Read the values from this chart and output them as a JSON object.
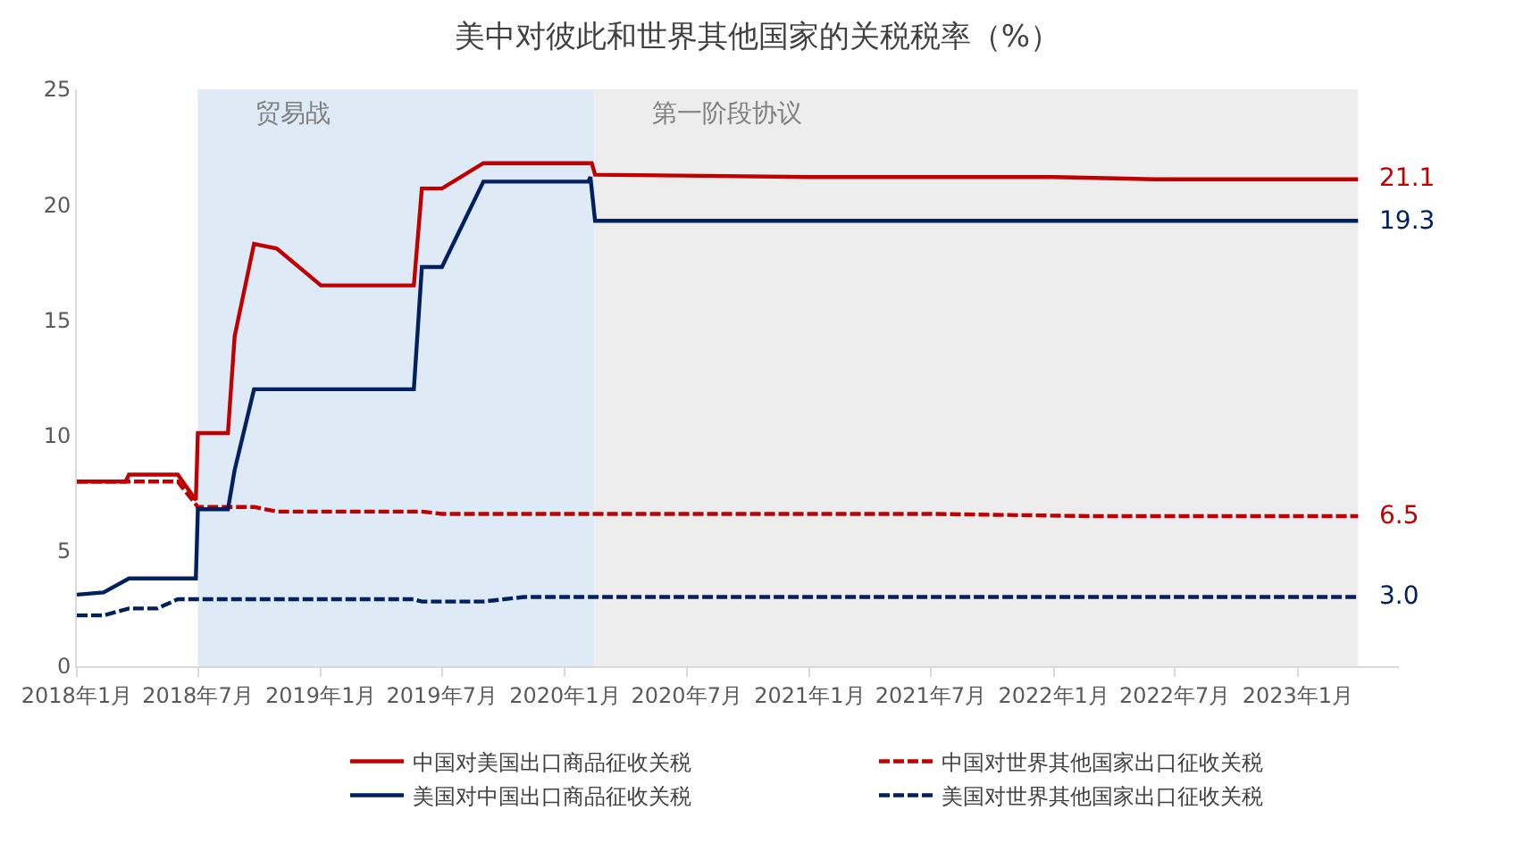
{
  "chart_data": {
    "type": "line",
    "title": "美中对彼此和世界其他国家的关税税率（%）",
    "xlim": [
      "2018-01",
      "2023-06"
    ],
    "xticks": [
      {
        "value": "2018-01",
        "label": "2018年1月"
      },
      {
        "value": "2018-07",
        "label": "2018年7月"
      },
      {
        "value": "2019-01",
        "label": "2019年1月"
      },
      {
        "value": "2019-07",
        "label": "2019年7月"
      },
      {
        "value": "2020-01",
        "label": "2020年1月"
      },
      {
        "value": "2020-07",
        "label": "2020年7月"
      },
      {
        "value": "2021-01",
        "label": "2021年1月"
      },
      {
        "value": "2021-07",
        "label": "2021年7月"
      },
      {
        "value": "2022-01",
        "label": "2022年1月"
      },
      {
        "value": "2022-07",
        "label": "2022年7月"
      },
      {
        "value": "2023-01",
        "label": "2023年1月"
      }
    ],
    "ylim": [
      0,
      25
    ],
    "yticks": [
      0,
      5,
      10,
      15,
      20,
      25
    ],
    "grid": false,
    "legend": "bottom",
    "marker": "none",
    "bands": [
      {
        "axis": "x",
        "from": "2018-07-01",
        "to": "2020-02-14",
        "label": "贸易战",
        "color": "#deebf7"
      },
      {
        "axis": "x",
        "from": "2020-02-14",
        "to": "2023-04-01",
        "label": "第一阶段协议",
        "color": "#ededed"
      }
    ],
    "series": [
      {
        "name": "中国对美国出口商品征收关税",
        "color": "#c00000",
        "line_style": "solid",
        "x": [
          "2018-01-01",
          "2018-03-15",
          "2018-03-20",
          "2018-06-01",
          "2018-06-28",
          "2018-07-01",
          "2018-08-15",
          "2018-08-25",
          "2018-09-23",
          "2018-10-27",
          "2019-01-01",
          "2019-05-20",
          "2019-06-01",
          "2019-07-01",
          "2019-09-01",
          "2020-02-10",
          "2020-02-15",
          "2021-01-01",
          "2022-01-01",
          "2022-06-01",
          "2022-09-01",
          "2023-01-01",
          "2023-04-01"
        ],
        "values": [
          8.0,
          8.0,
          8.3,
          8.3,
          7.2,
          10.1,
          10.1,
          14.3,
          18.3,
          18.1,
          16.5,
          16.5,
          20.7,
          20.7,
          21.8,
          21.8,
          21.3,
          21.2,
          21.2,
          21.1,
          21.1,
          21.1,
          21.1
        ]
      },
      {
        "name": "中国对世界其他国家出口征收关税",
        "color": "#c00000",
        "line_style": "dashed",
        "x": [
          "2018-01-01",
          "2018-06-01",
          "2018-07-01",
          "2018-09-23",
          "2018-10-27",
          "2019-06-01",
          "2019-07-01",
          "2021-07-01",
          "2022-03-01",
          "2023-04-01"
        ],
        "values": [
          8.0,
          8.0,
          6.9,
          6.9,
          6.7,
          6.7,
          6.6,
          6.6,
          6.5,
          6.5
        ]
      },
      {
        "name": "美国对中国出口商品征收关税",
        "color": "#002060",
        "line_style": "solid",
        "x": [
          "2018-01-01",
          "2018-02-10",
          "2018-03-20",
          "2018-06-28",
          "2018-07-01",
          "2018-08-15",
          "2018-08-25",
          "2018-09-23",
          "2019-05-20",
          "2019-06-01",
          "2019-07-01",
          "2019-09-01",
          "2020-02-05",
          "2020-02-08",
          "2020-02-15",
          "2023-04-01"
        ],
        "values": [
          3.1,
          3.2,
          3.8,
          3.8,
          6.8,
          6.8,
          8.5,
          12.0,
          12.0,
          17.3,
          17.3,
          21.0,
          21.0,
          21.2,
          19.3,
          19.3
        ]
      },
      {
        "name": "美国对世界其他国家出口征收关税",
        "color": "#002060",
        "line_style": "dashed",
        "x": [
          "2018-01-01",
          "2018-02-10",
          "2018-03-20",
          "2018-05-01",
          "2018-06-01",
          "2019-05-20",
          "2019-06-01",
          "2019-09-01",
          "2019-11-01",
          "2023-04-01"
        ],
        "values": [
          2.2,
          2.2,
          2.5,
          2.5,
          2.9,
          2.9,
          2.8,
          2.8,
          3.0,
          3.0
        ]
      }
    ],
    "annotations": [
      {
        "text": "21.1",
        "x": "2023-04-01",
        "y": 21.1
      },
      {
        "text": "6.5",
        "x": "2023-04-01",
        "y": 6.5
      },
      {
        "text": "19.3",
        "x": "2023-04-01",
        "y": 19.3
      },
      {
        "text": "3.0",
        "x": "2023-04-01",
        "y": 3.0
      }
    ]
  }
}
